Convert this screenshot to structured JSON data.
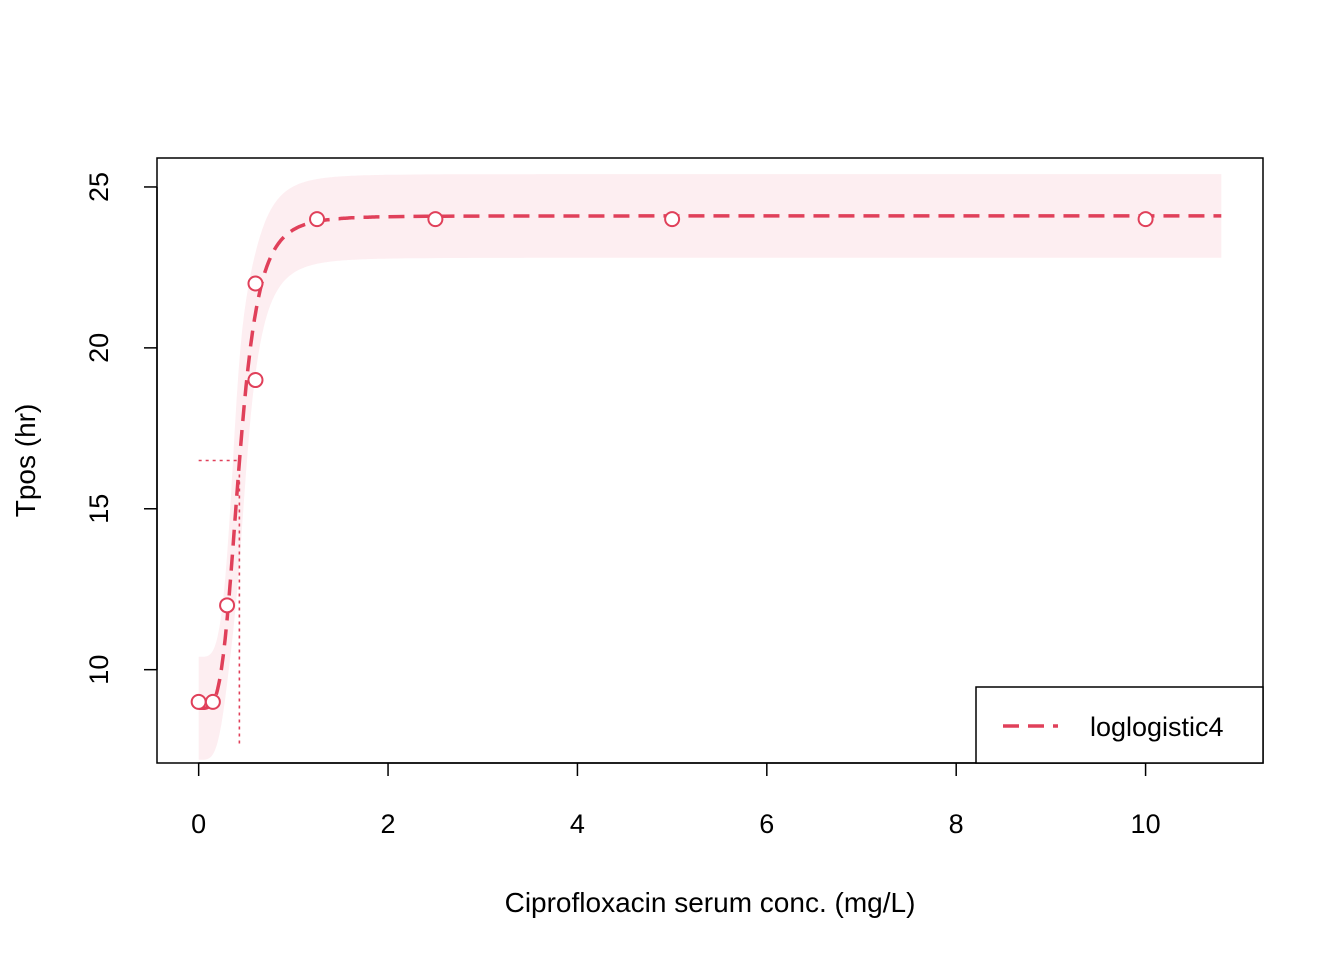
{
  "chart_data": {
    "type": "line",
    "title": "",
    "xlabel": "Ciprofloxacin serum conc. (mg/L)",
    "ylabel": "Tpos (hr)",
    "xlim": [
      -0.44,
      11.24
    ],
    "ylim": [
      7.1,
      25.9
    ],
    "x_ticks": [
      0,
      2,
      4,
      6,
      8,
      10
    ],
    "y_ticks": [
      10,
      15,
      20,
      25
    ],
    "grid": false,
    "colors": {
      "series": "#E0405A",
      "band": "#FDEEF1",
      "axis": "#000000"
    },
    "series": [
      {
        "name": "loglogistic4",
        "style": "dashed",
        "model": {
          "lower": 8.8,
          "upper": 24.1,
          "ed50": 0.43,
          "slope": 4.2
        },
        "x_range": [
          0,
          10.8
        ]
      }
    ],
    "points": [
      {
        "x": 0,
        "y": 9
      },
      {
        "x": 0.15,
        "y": 9
      },
      {
        "x": 0.3,
        "y": 12
      },
      {
        "x": 0.6,
        "y": 22
      },
      {
        "x": 0.6,
        "y": 19
      },
      {
        "x": 1.25,
        "y": 24
      },
      {
        "x": 2.5,
        "y": 24
      },
      {
        "x": 5,
        "y": 24
      },
      {
        "x": 10,
        "y": 24
      }
    ],
    "confidence_band": {
      "halfwidth_low": 1.5,
      "halfwidth_high": 1.2
    },
    "reference_lines": {
      "ed50_x": 0.43,
      "ed50_y": 16.5,
      "x_start": 0,
      "y_end": 7.7
    },
    "legend": {
      "position": "bottom-right",
      "entries": [
        "loglogistic4"
      ]
    }
  }
}
